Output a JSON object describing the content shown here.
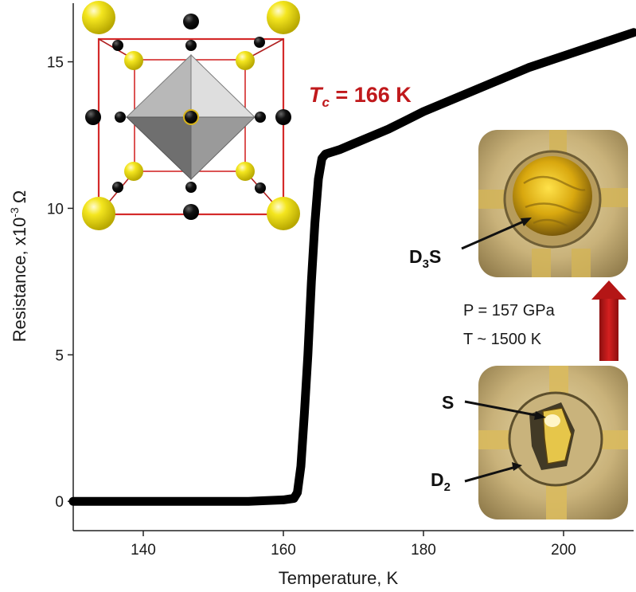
{
  "chart_data": {
    "type": "line",
    "xlabel": "Temperature, K",
    "ylabel_main": "Resistance, x10",
    "ylabel_exp": "-3",
    "ylabel_unit": "Ω",
    "xlim": [
      130,
      210
    ],
    "ylim": [
      -1,
      17
    ],
    "xticks": [
      140,
      160,
      180,
      200
    ],
    "yticks": [
      0,
      5,
      10,
      15
    ],
    "grid": false,
    "series": [
      {
        "color": "#000000",
        "x": [
          130,
          135,
          140,
          145,
          150,
          155,
          160,
          161.5,
          162.0,
          162.5,
          163.0,
          163.5,
          164.0,
          164.5,
          165.0,
          165.5,
          166.0,
          168,
          170,
          175,
          180,
          185,
          190,
          195,
          200,
          205,
          210
        ],
        "y": [
          0.0,
          0.0,
          0.0,
          0.0,
          0.0,
          0.0,
          0.05,
          0.1,
          0.3,
          1.2,
          3.0,
          5.0,
          7.5,
          9.5,
          11.0,
          11.7,
          11.85,
          12.0,
          12.2,
          12.7,
          13.3,
          13.8,
          14.3,
          14.8,
          15.2,
          15.6,
          16.0
        ]
      }
    ],
    "annotations": {
      "tc_symbol": "T",
      "tc_sub": "c",
      "tc_value": " = 166 K",
      "pressure": "P = 157 GPa",
      "temperature": "T ~ 1500 K",
      "label_d3s_main": "D",
      "label_d3s_sub": "3",
      "label_d3s_tail": "S",
      "label_s": "S",
      "label_d2_main": "D",
      "label_d2_sub": "2"
    },
    "colors": {
      "curve": "#000000",
      "tc": "#c0191c",
      "arrow": "#b01818",
      "cell_edges": "#d42a2a",
      "sulfur": "#f2e21a",
      "deuterium": "#111111"
    }
  }
}
